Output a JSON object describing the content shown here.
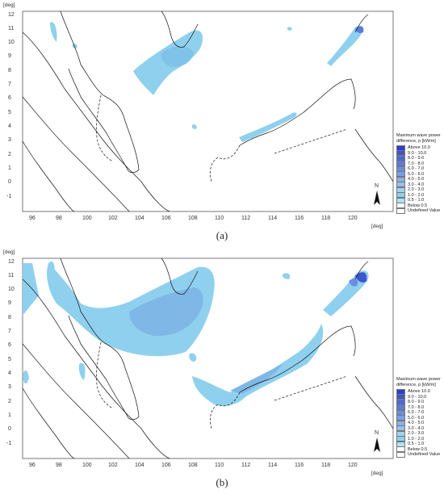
{
  "panels": [
    {
      "caption": "(a)",
      "y_unit": "[deg]",
      "x_unit": "[deg]",
      "x_ticks": [
        "96",
        "98",
        "100",
        "102",
        "104",
        "106",
        "108",
        "110",
        "112",
        "114",
        "116",
        "118",
        "120"
      ],
      "y_ticks": [
        "12",
        "11",
        "10",
        "9",
        "8",
        "7",
        "6",
        "5",
        "4",
        "3",
        "2",
        "1",
        "0",
        "-1"
      ]
    },
    {
      "caption": "(b)",
      "y_unit": "[deg]",
      "x_unit": "[deg]",
      "x_ticks": [
        "96",
        "98",
        "100",
        "102",
        "104",
        "106",
        "108",
        "110",
        "112",
        "114",
        "116",
        "118",
        "120"
      ],
      "y_ticks": [
        "12",
        "11",
        "10",
        "9",
        "8",
        "7",
        "6",
        "5",
        "4",
        "3",
        "2",
        "1",
        "0",
        "-1"
      ]
    }
  ],
  "legend": {
    "title": "Maximum wave power difference, p [kW/m]",
    "items": [
      {
        "label": "Above 10.0",
        "color": "#2f3fc8"
      },
      {
        "label": "9.0 - 10.0",
        "color": "#3f54cf"
      },
      {
        "label": "8.0 -  9.0",
        "color": "#4d68d4"
      },
      {
        "label": "7.0 -  8.0",
        "color": "#5b7bd9"
      },
      {
        "label": "6.0 -  7.0",
        "color": "#6a8ede"
      },
      {
        "label": "5.0 -  6.0",
        "color": "#7aa0e2"
      },
      {
        "label": "4.0 -  5.0",
        "color": "#89b1e6"
      },
      {
        "label": "3.0 -  4.0",
        "color": "#97c2ea"
      },
      {
        "label": "2.0 -  3.0",
        "color": "#a6d2ee"
      },
      {
        "label": "1.0 -  2.0",
        "color": "#8fd0ee"
      },
      {
        "label": "0.5 -  1.0",
        "color": "#aee3f5"
      },
      {
        "label": "Below   0.5",
        "color": "#ffffff"
      },
      {
        "label": "Undefined Value",
        "color": "#ffffff"
      }
    ]
  },
  "north_arrow": "N"
}
